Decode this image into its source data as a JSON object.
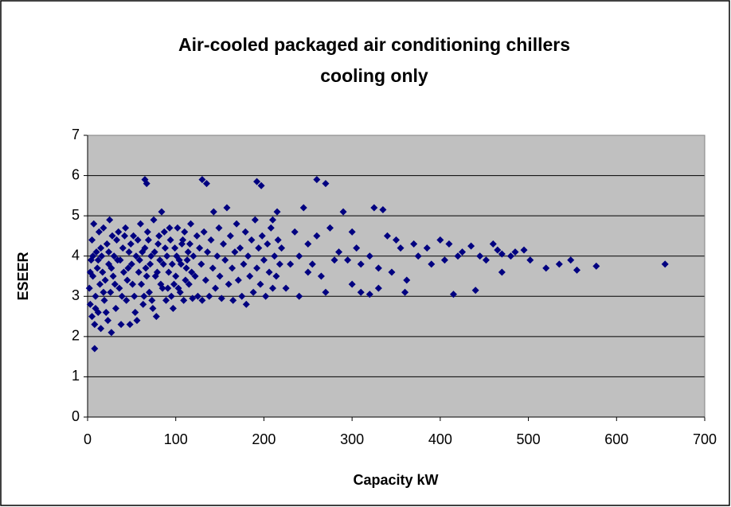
{
  "chart_data": {
    "type": "scatter",
    "title": [
      "Air-cooled packaged air conditioning chillers",
      "cooling only"
    ],
    "x_label": "Capacity kW",
    "y_label": "ESEER",
    "color": "#000080",
    "background": "#c0c0c0",
    "grid": true,
    "xlim": [
      0,
      700
    ],
    "xticks": [
      0,
      100,
      200,
      300,
      400,
      500,
      600,
      700
    ],
    "ylim": [
      0,
      7
    ],
    "yticks": [
      0,
      1,
      2,
      3,
      4,
      5,
      6,
      7
    ],
    "x": [
      8,
      65,
      67,
      130,
      135,
      192,
      197,
      260,
      270,
      655,
      577,
      555,
      548,
      535,
      520,
      502,
      495,
      485,
      470,
      470,
      465,
      452,
      440,
      415,
      435,
      425,
      410,
      400,
      385,
      370,
      360,
      362,
      350,
      340,
      335,
      325,
      320,
      310,
      300,
      290,
      285,
      280,
      270,
      250,
      245,
      240,
      230,
      215,
      210,
      320,
      330,
      345,
      355,
      375,
      390,
      405,
      420,
      445,
      460,
      480,
      300,
      310,
      330,
      295,
      305,
      260,
      265,
      275,
      255,
      235,
      225,
      220,
      240,
      250,
      2,
      3,
      4,
      5,
      5,
      6,
      7,
      8,
      9,
      10,
      11,
      12,
      13,
      14,
      15,
      16,
      17,
      18,
      19,
      20,
      22,
      23,
      24,
      25,
      26,
      27,
      28,
      29,
      30,
      32,
      34,
      35,
      36,
      38,
      40,
      41,
      43,
      44,
      45,
      47,
      48,
      50,
      52,
      53,
      55,
      56,
      58,
      60,
      61,
      63,
      65,
      66,
      68,
      70,
      72,
      74,
      75,
      77,
      78,
      80,
      82,
      84,
      85,
      87,
      89,
      90,
      92,
      94,
      95,
      97,
      99,
      100,
      102,
      104,
      105,
      107,
      109,
      110,
      112,
      114,
      115,
      117,
      119,
      120,
      122,
      124,
      125,
      127,
      129,
      130,
      132,
      134,
      136,
      138,
      140,
      142,
      143,
      145,
      147,
      149,
      150,
      152,
      154,
      156,
      158,
      160,
      162,
      164,
      165,
      167,
      169,
      171,
      173,
      175,
      177,
      179,
      180,
      182,
      184,
      186,
      188,
      190,
      192,
      194,
      196,
      198,
      200,
      202,
      204,
      206,
      208,
      210,
      212,
      214,
      216,
      218,
      3,
      6,
      9,
      12,
      15,
      18,
      21,
      24,
      27,
      31,
      33,
      37,
      39,
      42,
      46,
      49,
      51,
      54,
      57,
      59,
      62,
      64,
      67,
      69,
      71,
      73,
      76,
      79,
      81,
      83,
      86,
      88,
      91,
      93,
      96,
      98,
      101,
      103,
      106,
      108,
      111,
      113,
      116,
      118
    ],
    "values": [
      1.7,
      5.9,
      5.8,
      5.9,
      5.8,
      5.85,
      5.75,
      5.9,
      5.8,
      3.8,
      3.75,
      3.65,
      3.9,
      3.8,
      3.7,
      3.9,
      4.15,
      4.1,
      3.6,
      4.05,
      4.15,
      3.9,
      3.15,
      3.05,
      4.25,
      4.1,
      4.3,
      4.4,
      4.2,
      4.3,
      3.1,
      3.4,
      4.4,
      4.5,
      5.15,
      5.2,
      3.05,
      3.8,
      4.6,
      5.1,
      4.1,
      3.9,
      3.1,
      4.3,
      5.2,
      3.0,
      3.8,
      5.1,
      4.9,
      4.0,
      3.7,
      3.6,
      4.2,
      4.0,
      3.8,
      3.9,
      4.0,
      4.0,
      4.3,
      4.0,
      3.3,
      3.1,
      3.2,
      3.9,
      4.2,
      4.5,
      3.5,
      4.7,
      3.8,
      4.6,
      3.2,
      4.2,
      4.0,
      3.6,
      3.2,
      2.8,
      3.9,
      4.4,
      2.5,
      3.5,
      4.8,
      2.3,
      3.0,
      4.1,
      3.7,
      2.6,
      4.6,
      3.3,
      2.2,
      4.0,
      3.6,
      4.7,
      2.9,
      3.4,
      4.3,
      2.4,
      3.8,
      4.9,
      3.1,
      2.1,
      4.5,
      3.5,
      4.0,
      2.7,
      3.9,
      4.6,
      3.2,
      2.3,
      4.2,
      3.6,
      4.7,
      2.9,
      3.4,
      4.1,
      2.3,
      3.8,
      4.5,
      3.0,
      4.0,
      2.4,
      3.6,
      4.8,
      3.3,
      2.8,
      4.2,
      3.7,
      4.6,
      3.1,
      4.0,
      2.7,
      4.9,
      3.5,
      2.5,
      4.3,
      3.9,
      5.1,
      3.2,
      4.6,
      2.9,
      4.0,
      3.6,
      4.4,
      3.0,
      2.7,
      4.2,
      3.5,
      4.7,
      3.9,
      3.1,
      4.3,
      2.9,
      4.6,
      3.7,
      4.1,
      3.3,
      4.8,
      2.95,
      4.0,
      3.5,
      4.5,
      3.0,
      4.2,
      3.8,
      2.9,
      4.6,
      3.4,
      4.1,
      3.0,
      4.4,
      3.7,
      5.1,
      3.2,
      4.0,
      4.7,
      3.5,
      2.95,
      4.3,
      3.9,
      5.2,
      3.3,
      4.5,
      3.7,
      2.9,
      4.1,
      4.8,
      3.4,
      4.2,
      3.0,
      3.8,
      4.6,
      2.8,
      4.0,
      3.5,
      4.4,
      3.1,
      4.9,
      3.7,
      4.2,
      3.3,
      4.5,
      3.9,
      3.0,
      4.3,
      3.6,
      4.7,
      3.2,
      4.0,
      3.5,
      4.4,
      3.8,
      3.6,
      4.0,
      2.7,
      3.9,
      4.2,
      3.1,
      2.6,
      4.1,
      3.7,
      3.3,
      4.4,
      3.9,
      3.0,
      4.5,
      3.7,
      4.3,
      3.3,
      2.6,
      4.4,
      3.9,
      4.1,
      3.0,
      3.5,
      4.4,
      3.8,
      2.9,
      4.1,
      3.6,
      4.5,
      3.3,
      3.8,
      4.2,
      3.2,
      4.7,
      3.8,
      3.3,
      4.0,
      3.2,
      3.8,
      4.4,
      3.4,
      3.9,
      4.3,
      3.6
    ]
  }
}
